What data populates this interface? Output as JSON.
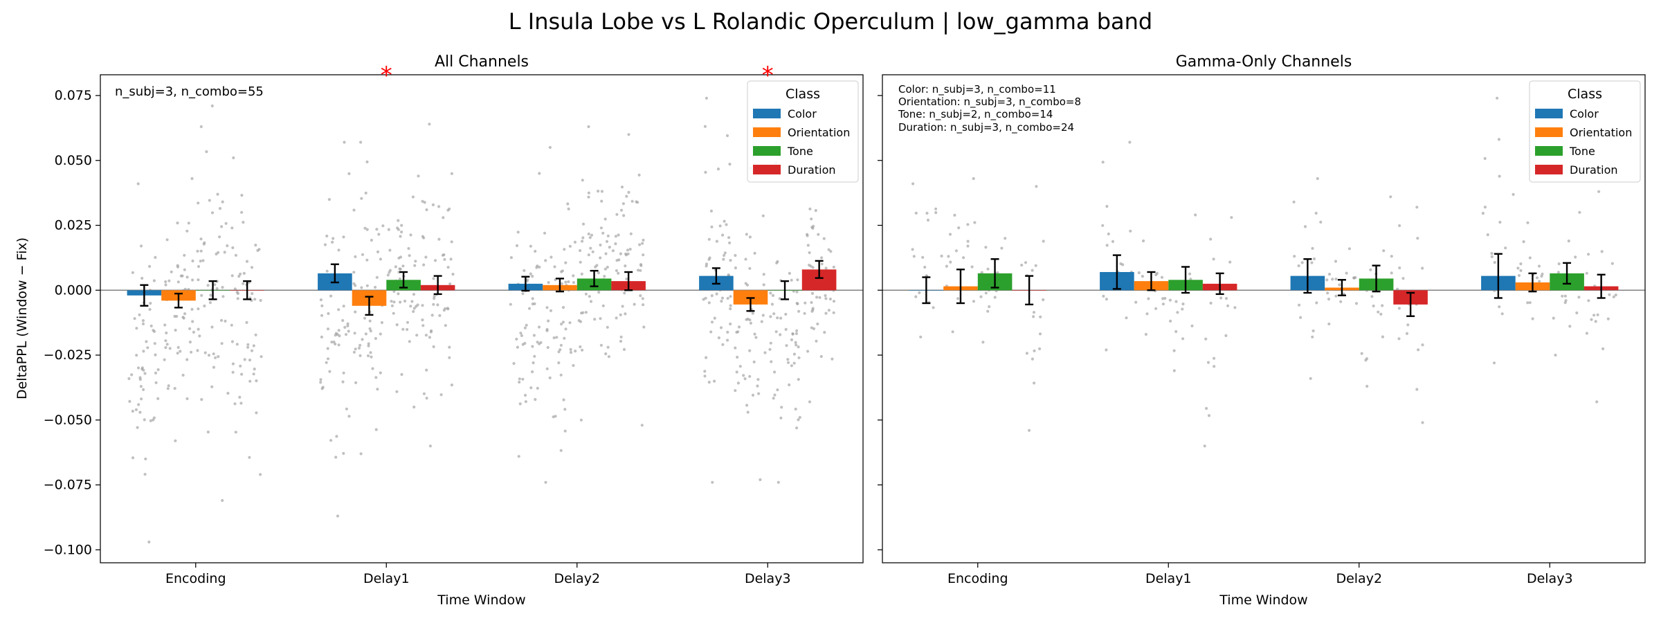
{
  "figure": {
    "suptitle": "L Insula Lobe vs L Rolandic Operculum  |  low_gamma band"
  },
  "colors": {
    "Color": "#1f77b4",
    "Orientation": "#ff7f0e",
    "Tone": "#2ca02c",
    "Duration": "#d62728",
    "significance": "#ff0000",
    "scatter": "#9e9e9e",
    "zero_line": "#808080"
  },
  "chart_data": [
    {
      "type": "bar",
      "title": "All Channels",
      "xlabel": "Time Window",
      "ylabel": "DeltaPPL (Window − Fix)",
      "ylim": [
        -0.105,
        0.083
      ],
      "yticks": [
        0.075,
        0.05,
        0.025,
        0.0,
        -0.025,
        -0.05,
        -0.075,
        -0.1
      ],
      "ytick_labels": [
        "0.075",
        "0.050",
        "0.025",
        "0.000",
        "−0.025",
        "−0.050",
        "−0.075",
        "−0.100"
      ],
      "categories": [
        "Encoding",
        "Delay1",
        "Delay2",
        "Delay3"
      ],
      "legend_title": "Class",
      "legend_position": "upper right",
      "annotation": "n_subj=3, n_combo=55",
      "significance": [
        {
          "category": "Delay1",
          "symbol": "*"
        },
        {
          "category": "Delay3",
          "symbol": "*"
        }
      ],
      "series": [
        {
          "name": "Color",
          "values": [
            -0.002,
            0.0065,
            0.0025,
            0.0055
          ],
          "err": [
            0.004,
            0.0035,
            0.0027,
            0.003
          ]
        },
        {
          "name": "Orientation",
          "values": [
            -0.004,
            -0.006,
            0.002,
            -0.0055
          ],
          "err": [
            0.0027,
            0.0035,
            0.0025,
            0.0025
          ]
        },
        {
          "name": "Tone",
          "values": [
            0.0,
            0.004,
            0.0045,
            0.0
          ],
          "err": [
            0.0035,
            0.003,
            0.003,
            0.0035
          ]
        },
        {
          "name": "Duration",
          "values": [
            0.0,
            0.002,
            0.0035,
            0.008
          ],
          "err": [
            0.0035,
            0.0035,
            0.0035,
            0.0033
          ]
        }
      ],
      "scatter_bands": [
        [
          [
            -0.097,
            0.041
          ],
          [
            -0.058,
            0.043
          ],
          [
            -0.081,
            0.071
          ],
          [
            -0.071,
            0.051
          ]
        ],
        [
          [
            -0.087,
            0.057
          ],
          [
            -0.063,
            0.057
          ],
          [
            -0.045,
            0.044
          ],
          [
            -0.06,
            0.064
          ]
        ],
        [
          [
            -0.064,
            0.045
          ],
          [
            -0.074,
            0.055
          ],
          [
            -0.05,
            0.063
          ],
          [
            -0.052,
            0.06
          ]
        ],
        [
          [
            -0.074,
            0.074
          ],
          [
            -0.073,
            0.047
          ],
          [
            -0.074,
            0.049
          ],
          [
            -0.043,
            0.045
          ]
        ]
      ],
      "scatter_count": 55
    },
    {
      "type": "bar",
      "title": "Gamma-Only Channels",
      "xlabel": "Time Window",
      "ylabel": "",
      "ylim": [
        -0.105,
        0.083
      ],
      "yticks": [
        0.075,
        0.05,
        0.025,
        0.0,
        -0.025,
        -0.05,
        -0.075,
        -0.1
      ],
      "ytick_labels": [],
      "categories": [
        "Encoding",
        "Delay1",
        "Delay2",
        "Delay3"
      ],
      "legend_title": "Class",
      "legend_position": "upper right",
      "annotation_lines": [
        "Color: n_subj=3, n_combo=11",
        "Orientation: n_subj=3, n_combo=8",
        "Tone: n_subj=2, n_combo=14",
        "Duration: n_subj=3, n_combo=24"
      ],
      "significance": [],
      "series": [
        {
          "name": "Color",
          "values": [
            0.0,
            0.007,
            0.0055,
            0.0055
          ],
          "err": [
            0.005,
            0.0065,
            0.0065,
            0.0085
          ]
        },
        {
          "name": "Orientation",
          "values": [
            0.0015,
            0.0035,
            0.001,
            0.003
          ],
          "err": [
            0.0065,
            0.0035,
            0.003,
            0.0035
          ]
        },
        {
          "name": "Tone",
          "values": [
            0.0065,
            0.004,
            0.0045,
            0.0065
          ],
          "err": [
            0.0055,
            0.005,
            0.005,
            0.004
          ]
        },
        {
          "name": "Duration",
          "values": [
            0.0,
            0.0025,
            -0.0055,
            0.0015
          ],
          "err": [
            0.0055,
            0.004,
            0.0045,
            0.0045
          ]
        }
      ],
      "scatter_bands": [
        [
          [
            -0.018,
            0.041
          ],
          [
            -0.016,
            0.043
          ],
          [
            -0.02,
            0.02
          ],
          [
            -0.054,
            0.04
          ]
        ],
        [
          [
            -0.023,
            0.057
          ],
          [
            -0.017,
            0.019
          ],
          [
            -0.031,
            0.029
          ],
          [
            -0.06,
            0.028
          ]
        ],
        [
          [
            -0.034,
            0.043
          ],
          [
            -0.013,
            0.016
          ],
          [
            -0.037,
            0.036
          ],
          [
            -0.051,
            0.032
          ]
        ],
        [
          [
            -0.028,
            0.074
          ],
          [
            -0.011,
            0.026
          ],
          [
            -0.025,
            0.03
          ],
          [
            -0.043,
            0.038
          ]
        ]
      ],
      "scatter_count": 18
    }
  ]
}
